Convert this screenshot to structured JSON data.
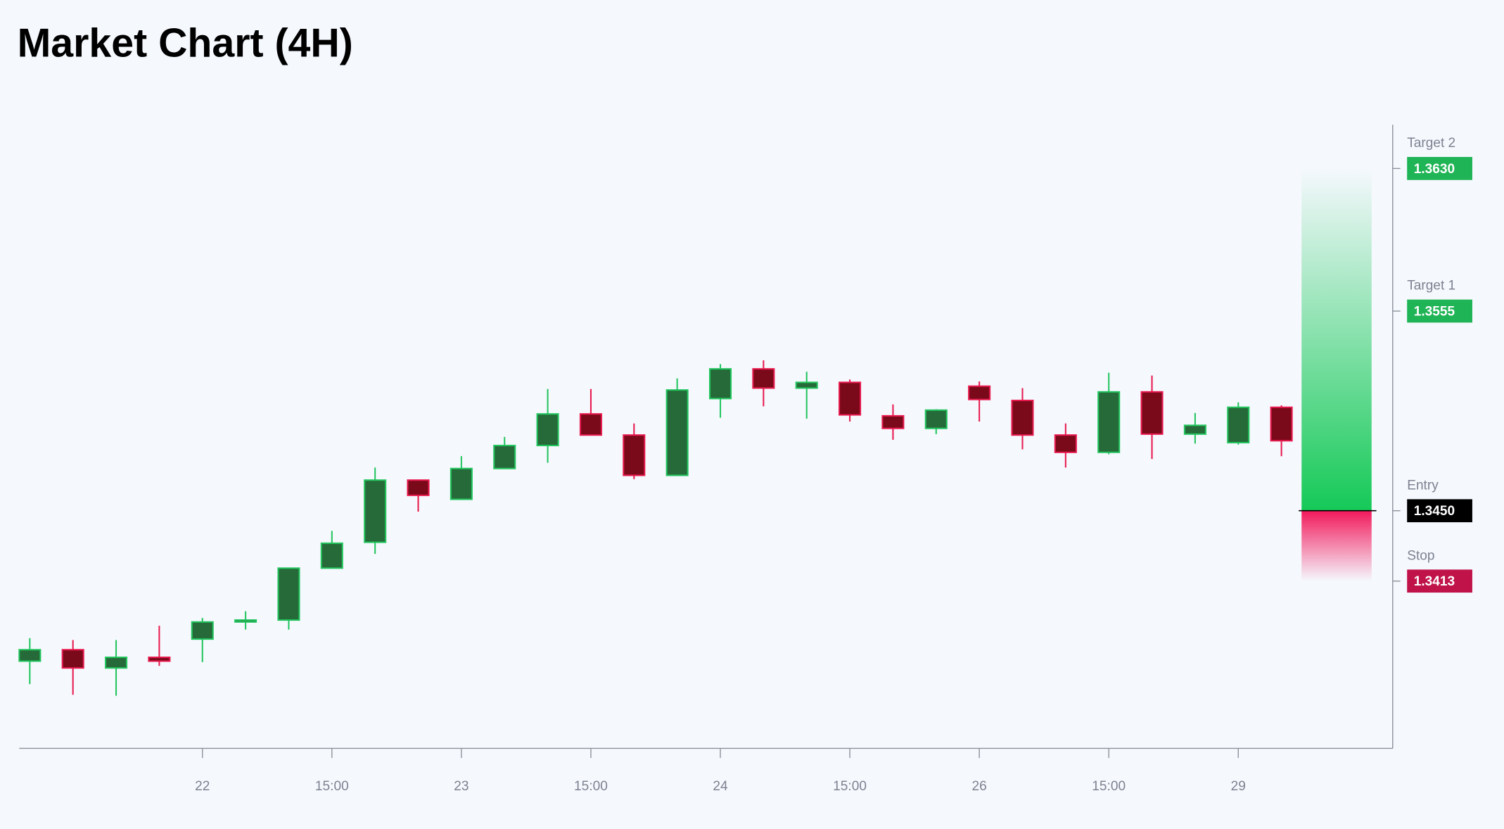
{
  "chart_data": {
    "type": "candlestick",
    "title": "Market Chart (4H)",
    "categories": [
      null,
      null,
      null,
      null,
      "22",
      null,
      null,
      "15:00",
      null,
      null,
      "23",
      null,
      null,
      "15:00",
      null,
      null,
      "24",
      null,
      null,
      "15:00",
      null,
      null,
      "26",
      null,
      null,
      "15:00",
      null,
      null,
      "29",
      null
    ],
    "open": [
      1.33709,
      1.33769,
      1.33673,
      1.33729,
      1.33825,
      1.33915,
      1.33925,
      1.34198,
      1.34334,
      1.34661,
      1.3456,
      1.34722,
      1.34843,
      1.35009,
      1.34898,
      1.34686,
      1.3509,
      1.35246,
      1.35145,
      1.35175,
      1.34999,
      1.34933,
      1.35155,
      1.3508,
      1.34898,
      1.34807,
      1.35125,
      1.34903,
      1.34858,
      1.35044
    ],
    "high": [
      1.3383,
      1.3382,
      1.3382,
      1.33895,
      1.33936,
      1.33971,
      1.34198,
      1.34394,
      1.34727,
      1.34661,
      1.34787,
      1.34888,
      1.3514,
      1.3514,
      1.34959,
      1.35196,
      1.35271,
      1.35291,
      1.35231,
      1.3519,
      1.35059,
      1.35034,
      1.3518,
      1.35145,
      1.34959,
      1.35226,
      1.35211,
      1.35014,
      1.3507,
      1.35054
    ],
    "low": [
      1.33588,
      1.33532,
      1.33527,
      1.33684,
      1.33704,
      1.33875,
      1.33875,
      1.34198,
      1.34273,
      1.34495,
      1.3456,
      1.34722,
      1.34752,
      1.34898,
      1.34666,
      1.34686,
      1.34989,
      1.35049,
      1.34984,
      1.34969,
      1.34873,
      1.34903,
      1.34969,
      1.34823,
      1.34727,
      1.34797,
      1.34772,
      1.34853,
      1.34848,
      1.34787
    ],
    "close": [
      1.33769,
      1.33673,
      1.33729,
      1.33709,
      1.33915,
      1.33925,
      1.34198,
      1.34329,
      1.34661,
      1.34581,
      1.34722,
      1.34843,
      1.35009,
      1.34898,
      1.34686,
      1.35135,
      1.35246,
      1.35145,
      1.35175,
      1.35004,
      1.34933,
      1.35029,
      1.35085,
      1.34898,
      1.34807,
      1.35125,
      1.34903,
      1.34949,
      1.35044,
      1.34868
    ],
    "up_color": "#256a38",
    "up_edge": "#22c55e",
    "down_color": "#7a0a1a",
    "down_edge": "#e8194e",
    "ylim": [
      1.3325,
      1.3653
    ],
    "levels": [
      {
        "name": "Target 2",
        "value": 1.363,
        "label": "1.3630",
        "color": "#1fb455"
      },
      {
        "name": "Target 1",
        "value": 1.3555,
        "label": "1.3555",
        "color": "#1fb455"
      },
      {
        "name": "Entry",
        "value": 1.345,
        "label": "1.3450",
        "color": "#000000"
      },
      {
        "name": "Stop",
        "value": 1.3413,
        "label": "1.3413",
        "color": "#c0134a"
      }
    ]
  }
}
